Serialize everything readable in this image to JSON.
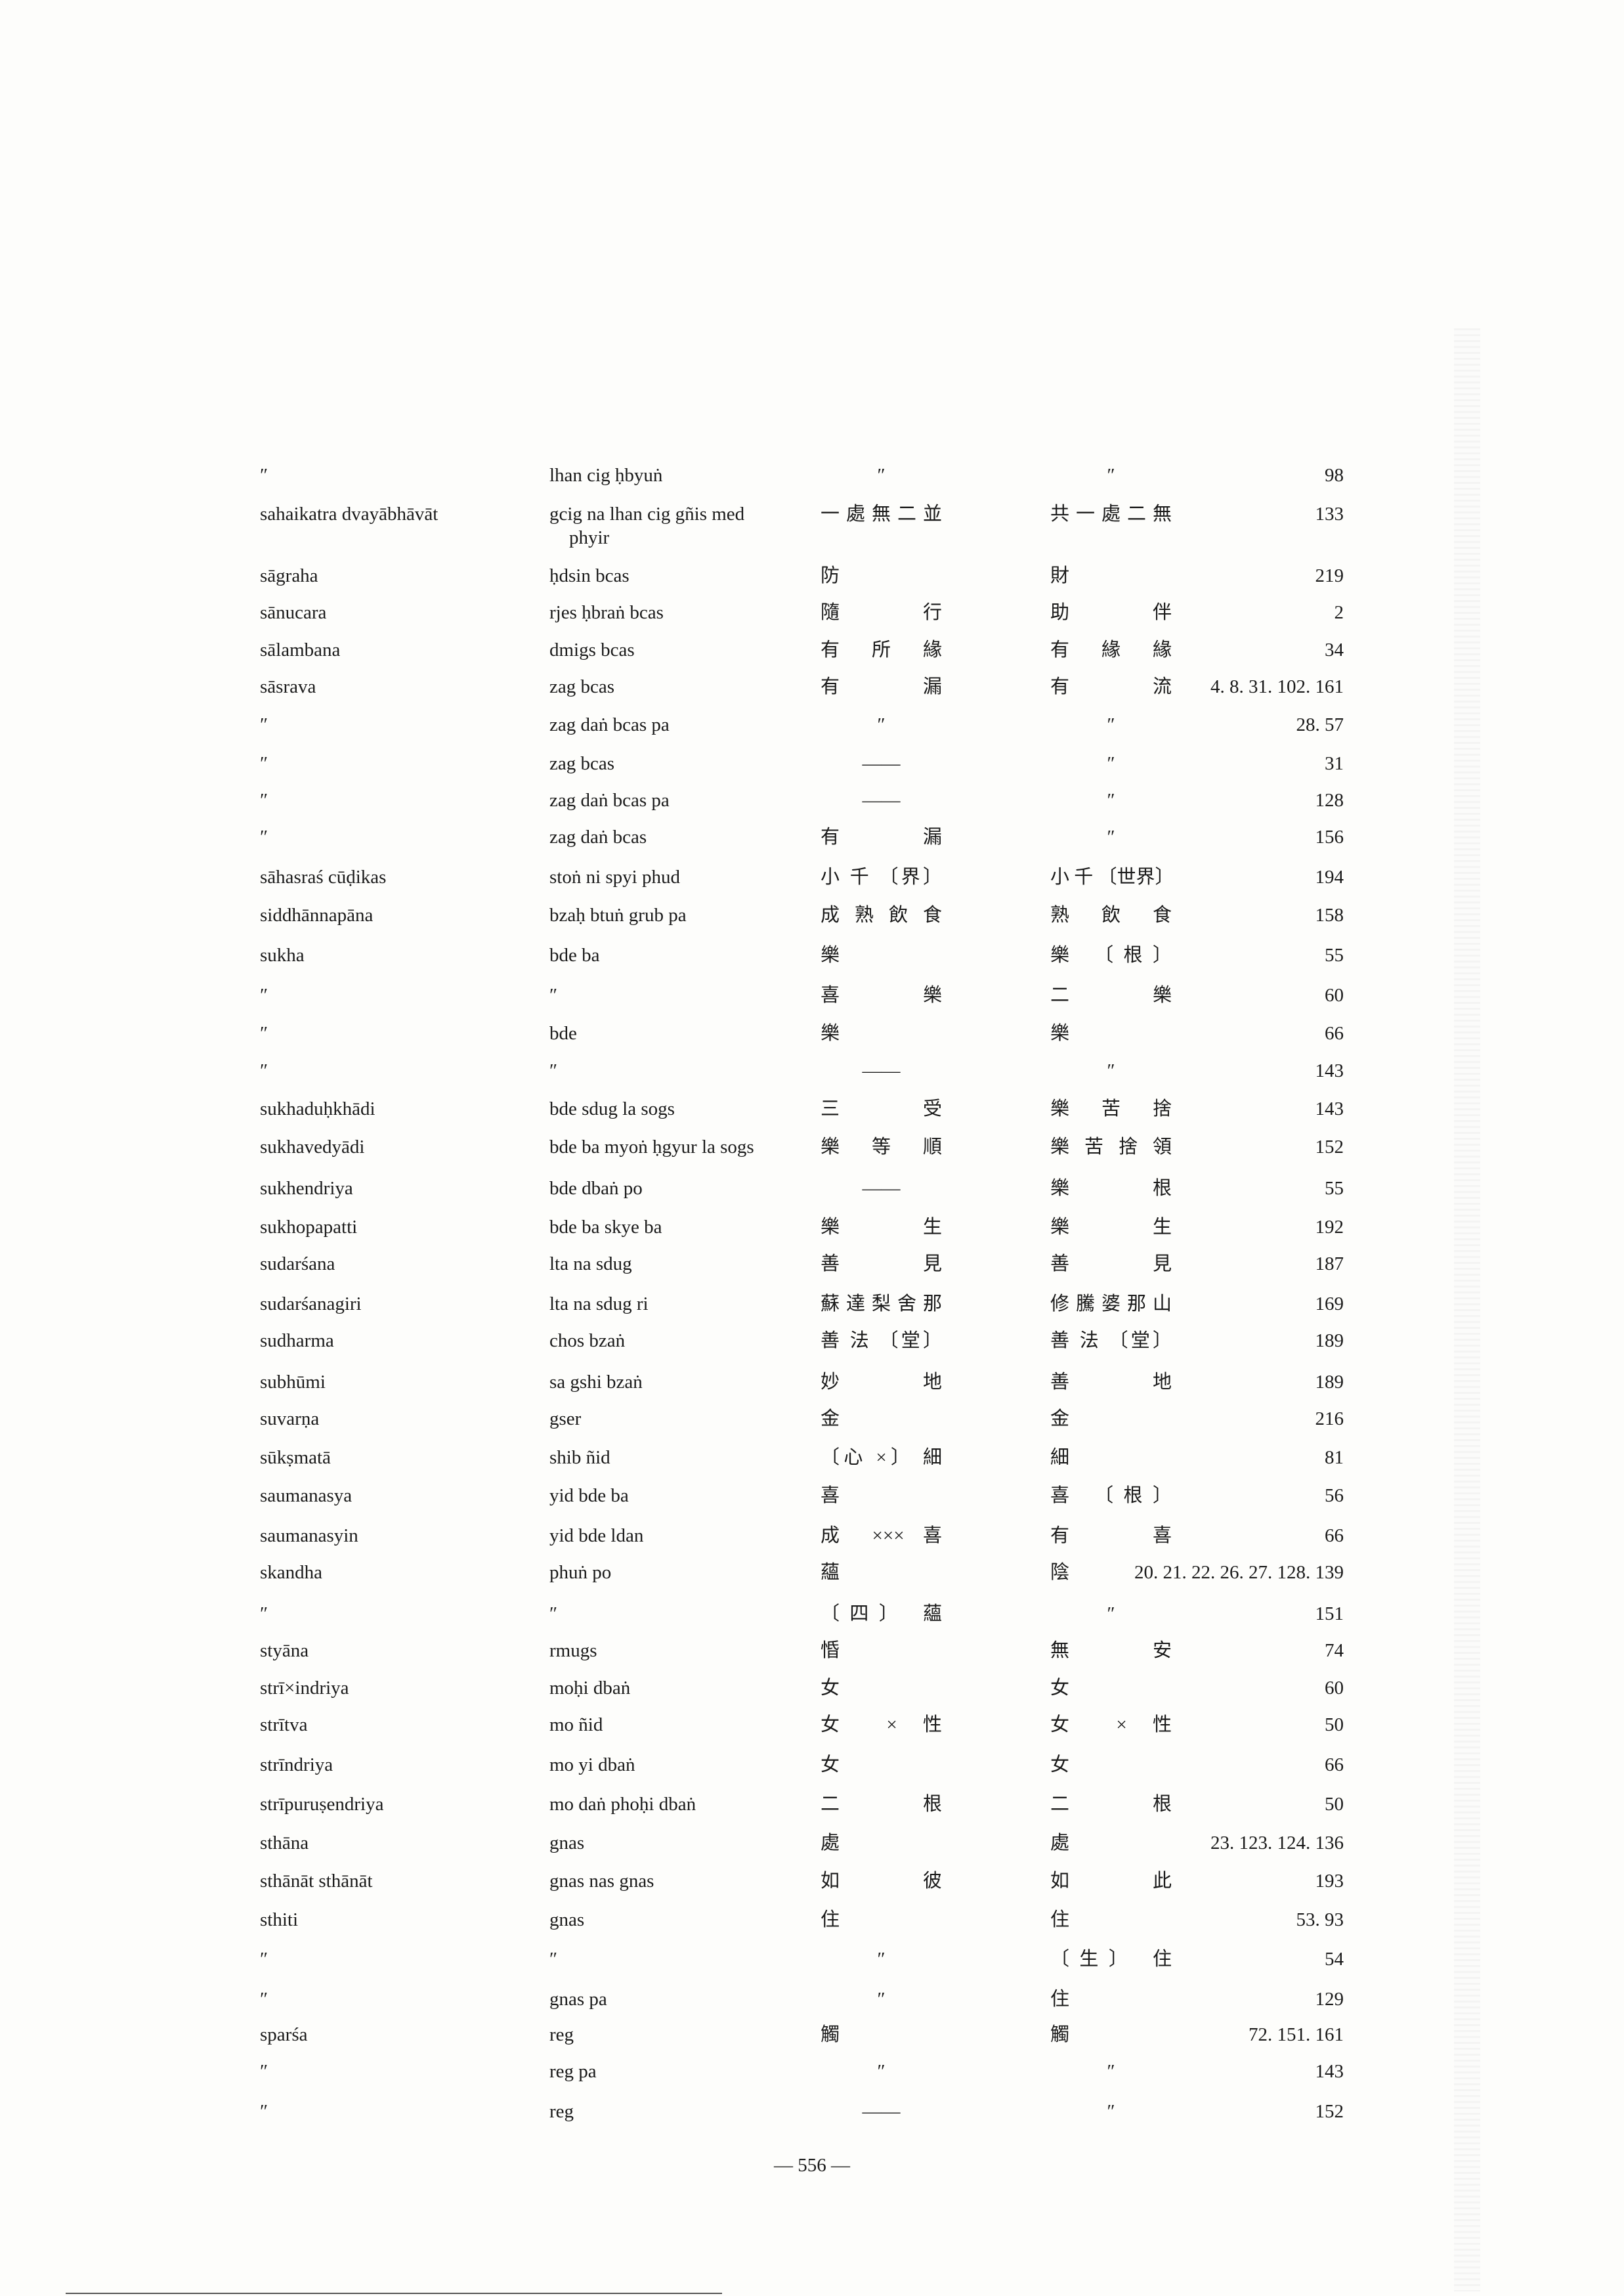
{
  "rows": [
    [
      "″",
      "lhan cig ḥbyuṅ",
      "″",
      "″",
      "98"
    ],
    [
      "sahaikatra dvayābhāvāt",
      "gcig na lhan cig gñis med|phyir",
      "一處無二並",
      "共一處二無",
      "133"
    ],
    [
      "sāgraha",
      "ḥdsin bcas",
      "防",
      "財",
      "219"
    ],
    [
      "sānucara",
      "rjes ḥbraṅ bcas",
      "隨 行",
      "助 伴",
      "2"
    ],
    [
      "sālambana",
      "dmigs bcas",
      "有 所 緣",
      "有 緣 緣",
      "34"
    ],
    [
      "sāsrava",
      "zag bcas",
      "有 漏",
      "有 流",
      "4. 8. 31. 102. 161"
    ],
    [
      "″",
      "zag daṅ bcas pa",
      "″",
      "″",
      "28. 57"
    ],
    [
      "″",
      "zag bcas",
      "——",
      "″",
      "31"
    ],
    [
      "″",
      "zag daṅ bcas pa",
      "——",
      "″",
      "128"
    ],
    [
      "″",
      "zag daṅ bcas",
      "有 漏",
      "″",
      "156"
    ],
    [
      "sāhasraś cūḍikas",
      "stoṅ ni spyi phud",
      "小 千 〔界〕",
      "小 千 〔世界〕",
      "194"
    ],
    [
      "siddhānnapāna",
      "bzaḥ btuṅ grub pa",
      "成 熟 飲 食",
      "熟 飲 食",
      "158"
    ],
    [
      "sukha",
      "bde ba",
      "樂",
      "樂 〔根〕",
      "55"
    ],
    [
      "″",
      "″",
      "喜 樂",
      "二 樂",
      "60"
    ],
    [
      "″",
      "bde",
      "樂",
      "樂",
      "66"
    ],
    [
      "″",
      "″",
      "——",
      "″",
      "143"
    ],
    [
      "sukhaduḥkhādi",
      "bde sdug la sogs",
      "三 受",
      "樂 苦 捨",
      "143"
    ],
    [
      "sukhavedyādi",
      "bde ba myoṅ ḥgyur la sogs",
      "樂 等 順",
      "樂 苦 捨 領",
      "152"
    ],
    [
      "sukhendriya",
      "bde dbaṅ po",
      "——",
      "樂 根",
      "55"
    ],
    [
      "sukhopapatti",
      "bde ba skye ba",
      "樂 生",
      "樂 生",
      "192"
    ],
    [
      "sudarśana",
      "lta na sdug",
      "善 見",
      "善 見",
      "187"
    ],
    [
      "sudarśanagiri",
      "lta na sdug ri",
      "蘇 達 梨 舍 那",
      "修 騰 婆 那 山",
      "169"
    ],
    [
      "sudharma",
      "chos bzaṅ",
      "善 法 〔堂〕",
      "善 法 〔堂〕",
      "189"
    ],
    [
      "subhūmi",
      "sa gshi bzaṅ",
      "妙 地",
      "善 地",
      "189"
    ],
    [
      "suvarṇa",
      "gser",
      "金",
      "金",
      "216"
    ],
    [
      "sūkṣmatā",
      "shib ñid",
      "〔心 ×〕 細",
      "細",
      "81"
    ],
    [
      "saumanasya",
      "yid bde ba",
      "喜",
      "喜 〔根〕",
      "56"
    ],
    [
      "saumanasyin",
      "yid bde ldan",
      "成 ××× 喜",
      "有 喜",
      "66"
    ],
    [
      "skandha",
      "phuṅ po",
      "蘊",
      "陰",
      "20. 21. 22. 26. 27. 128. 139"
    ],
    [
      "″",
      "″",
      "〔四〕 蘊",
      "″",
      "151"
    ],
    [
      "styāna",
      "rmugs",
      "惛",
      "無 安",
      "74"
    ],
    [
      "strī×indriya",
      "moḥi dbaṅ",
      "女",
      "女",
      "60"
    ],
    [
      "strītva",
      "mo ñid",
      "女 × 性",
      "女 × 性",
      "50"
    ],
    [
      "strīndriya",
      "mo yi dbaṅ",
      "女",
      "女",
      "66"
    ],
    [
      "strīpuruṣendriya",
      "mo daṅ phoḥi dbaṅ",
      "二 根",
      "二 根",
      "50"
    ],
    [
      "sthāna",
      "gnas",
      "處",
      "處",
      "23. 123. 124. 136"
    ],
    [
      "sthānāt sthānāt",
      "gnas nas gnas",
      "如 彼",
      "如 此",
      "193"
    ],
    [
      "sthiti",
      "gnas",
      "住",
      "住",
      "53. 93"
    ],
    [
      "″",
      "″",
      "″",
      "〔生〕 住",
      "54"
    ],
    [
      "″",
      "gnas pa",
      "″",
      "住",
      "129"
    ],
    [
      "sparśa",
      "reg",
      "觸",
      "觸",
      "72. 151. 161"
    ],
    [
      "″",
      "reg pa",
      "″",
      "″",
      "143"
    ],
    [
      "″",
      "reg",
      "——",
      "″",
      "152"
    ]
  ],
  "page_number": "— 556 —"
}
